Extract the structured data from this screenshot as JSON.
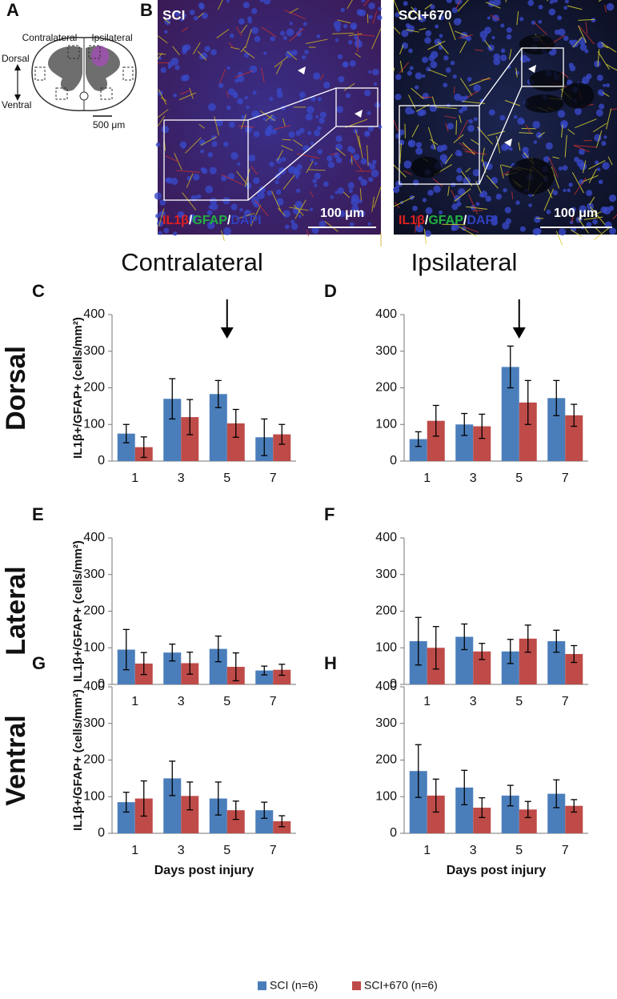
{
  "panel_a": {
    "label": "A",
    "contralateral": "Contralateral",
    "ipsilateral": "Ipsilateral",
    "dorsal": "Dorsal",
    "ventral": "Ventral",
    "scale": "500 μm"
  },
  "panel_b": {
    "label": "B",
    "images": [
      {
        "title": "SCI",
        "stain": [
          "IL1β",
          "/",
          "GFAP",
          "/",
          "DAPI"
        ],
        "scale": "100 μm"
      },
      {
        "title": "SCI+670",
        "stain": [
          "IL1β",
          "/",
          "GFAP",
          "/",
          "DAPI"
        ],
        "scale": "100 μm"
      }
    ]
  },
  "column_titles": [
    "Contralateral",
    "Ipsilateral"
  ],
  "row_titles": [
    "Dorsal",
    "Lateral",
    "Ventral"
  ],
  "chart_data": [
    {
      "type": "bar",
      "label": "C",
      "ylabel": "IL1β+/GFAP+ (cells/mm²)",
      "categories": [
        "1",
        "3",
        "5",
        "7"
      ],
      "series": [
        {
          "name": "SCI (n=6)",
          "color": "#4a7ebb",
          "values": [
            75,
            170,
            183,
            65
          ],
          "errors": [
            25,
            55,
            37,
            50
          ]
        },
        {
          "name": "SCI+670 (n=6)",
          "color": "#be4b48",
          "values": [
            38,
            120,
            103,
            73
          ],
          "errors": [
            28,
            48,
            38,
            27
          ]
        }
      ],
      "ylim": [
        0,
        400
      ],
      "yticks": [
        0,
        100,
        200,
        300,
        400
      ],
      "grid": false
    },
    {
      "type": "bar",
      "label": "D",
      "categories": [
        "1",
        "3",
        "5",
        "7"
      ],
      "series": [
        {
          "color": "#4a7ebb",
          "values": [
            60,
            100,
            257,
            172
          ],
          "errors": [
            20,
            30,
            57,
            48
          ]
        },
        {
          "color": "#be4b48",
          "values": [
            110,
            95,
            160,
            125
          ],
          "errors": [
            42,
            33,
            60,
            30
          ]
        }
      ],
      "ylim": [
        0,
        400
      ],
      "yticks": [
        0,
        100,
        200,
        300,
        400
      ],
      "grid": false
    },
    {
      "type": "bar",
      "label": "E",
      "ylabel": "IL1β+/GFAP+ (cells/mm²)",
      "categories": [
        "1",
        "3",
        "5",
        "7"
      ],
      "series": [
        {
          "color": "#4a7ebb",
          "values": [
            95,
            87,
            97,
            38
          ],
          "errors": [
            55,
            23,
            35,
            12
          ]
        },
        {
          "color": "#be4b48",
          "values": [
            57,
            58,
            48,
            40
          ],
          "errors": [
            30,
            30,
            38,
            15
          ]
        }
      ],
      "ylim": [
        0,
        400
      ],
      "yticks": [
        0,
        100,
        200,
        300,
        400
      ],
      "grid": false
    },
    {
      "type": "bar",
      "label": "F",
      "categories": [
        "1",
        "3",
        "5",
        "7"
      ],
      "series": [
        {
          "color": "#4a7ebb",
          "values": [
            118,
            130,
            90,
            118
          ],
          "errors": [
            65,
            35,
            33,
            30
          ]
        },
        {
          "color": "#be4b48",
          "values": [
            100,
            90,
            125,
            83
          ],
          "errors": [
            58,
            22,
            37,
            23
          ]
        }
      ],
      "ylim": [
        0,
        400
      ],
      "yticks": [
        0,
        100,
        200,
        300,
        400
      ],
      "grid": false
    },
    {
      "type": "bar",
      "label": "G",
      "ylabel": "IL1β+/GFAP+ (cells/mm²)",
      "xlabel": "Days post injury",
      "categories": [
        "1",
        "3",
        "5",
        "7"
      ],
      "series": [
        {
          "color": "#4a7ebb",
          "values": [
            85,
            150,
            95,
            63
          ],
          "errors": [
            27,
            47,
            45,
            22
          ]
        },
        {
          "color": "#be4b48",
          "values": [
            95,
            102,
            63,
            33
          ],
          "errors": [
            48,
            38,
            25,
            15
          ]
        }
      ],
      "ylim": [
        0,
        400
      ],
      "yticks": [
        0,
        100,
        200,
        300,
        400
      ],
      "grid": false
    },
    {
      "type": "bar",
      "label": "H",
      "xlabel": "Days post injury",
      "categories": [
        "1",
        "3",
        "5",
        "7"
      ],
      "series": [
        {
          "color": "#4a7ebb",
          "values": [
            170,
            125,
            103,
            108
          ],
          "errors": [
            72,
            47,
            28,
            38
          ]
        },
        {
          "color": "#be4b48",
          "values": [
            103,
            70,
            65,
            75
          ],
          "errors": [
            45,
            27,
            22,
            17
          ]
        }
      ],
      "ylim": [
        0,
        400
      ],
      "yticks": [
        0,
        100,
        200,
        300,
        400
      ],
      "grid": false
    }
  ]
}
